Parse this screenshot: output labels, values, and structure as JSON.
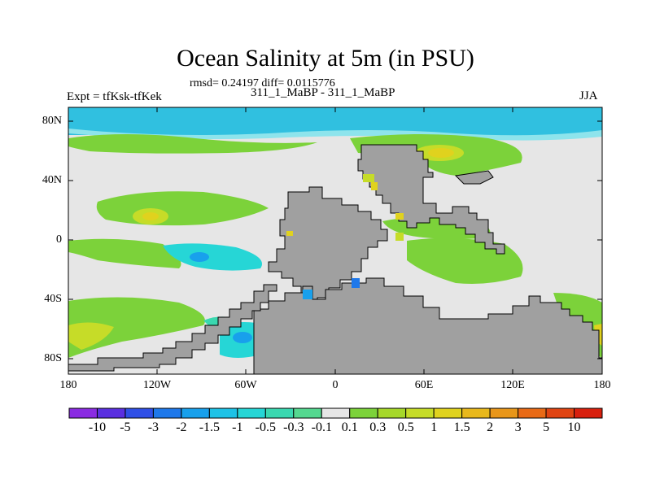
{
  "title": "Ocean Salinity at 5m (in PSU)",
  "stats": "rmsd= 0.24197 diff= 0.0115776",
  "experiment": "Expt = tfKsk-tfKek",
  "runs": "311_1_MaBP - 311_1_MaBP",
  "season": "JJA",
  "lat_labels": [
    "80N",
    "40N",
    "0",
    "40S",
    "80S"
  ],
  "lon_labels": [
    "180",
    "120W",
    "60W",
    "0",
    "60E",
    "120E",
    "180"
  ],
  "colorbar": {
    "labels": [
      "-10",
      "-5",
      "-3",
      "-2",
      "-1.5",
      "-1",
      "-0.5",
      "-0.3",
      "-0.1",
      "0.1",
      "0.3",
      "0.5",
      "1",
      "1.5",
      "2",
      "3",
      "5",
      "10"
    ],
    "colors": [
      "#8a2be2",
      "#5a2fe0",
      "#2f4fe6",
      "#1e78ea",
      "#18a0ec",
      "#1ec2e6",
      "#26d6d6",
      "#3ad8b0",
      "#55d890",
      "#e6e6e6",
      "#7cd23a",
      "#a6d82a",
      "#c6dc28",
      "#e0d21e",
      "#e8b81c",
      "#e8961a",
      "#e86a16",
      "#e04412",
      "#d8200e"
    ]
  },
  "legend_colors": {
    "land": "#a0a0a0",
    "near_zero": "#e6e6e6",
    "arctic_fresh": "#30c0e0",
    "arctic_edge": "#8ee4ec"
  }
}
